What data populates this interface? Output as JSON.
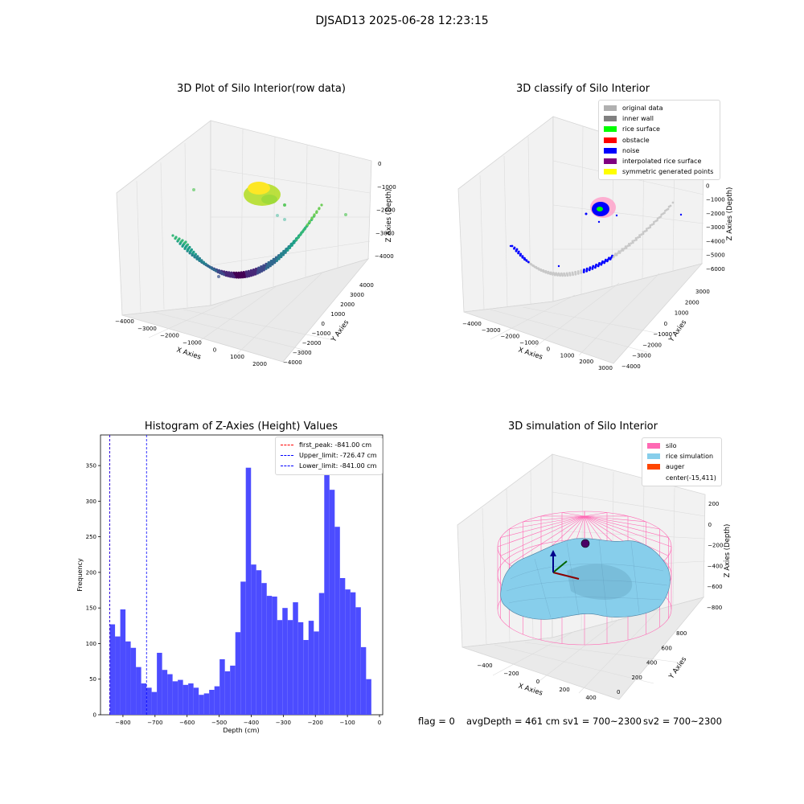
{
  "suptitle": "DJSAD13 2025-06-28 12:23:15",
  "chart_data": [
    {
      "type": "scatter",
      "dimension": "3d",
      "title": "3D Plot of Silo Interior(row data)",
      "xlabel": "X Axies",
      "ylabel": "Y Axies",
      "zlabel": "Z Axies (Depth)",
      "x_ticks": [
        "−4000",
        "−3000",
        "−2000",
        "−1000",
        "0",
        "1000",
        "2000"
      ],
      "y_ticks": [
        "−4000",
        "−3000",
        "−2000",
        "−1000",
        "0",
        "1000",
        "2000",
        "3000",
        "4000"
      ],
      "z_ticks": [
        "0",
        "−1000",
        "−2000",
        "−3000",
        "−4000"
      ],
      "colormap": "viridis",
      "grid": true
    },
    {
      "type": "scatter",
      "dimension": "3d",
      "title": "3D classify of Silo Interior",
      "xlabel": "X Axies",
      "ylabel": "Y Axies",
      "zlabel": "Z Axies (Depth)",
      "x_ticks": [
        "−4000",
        "−3000",
        "−2000",
        "−1000",
        "0",
        "1000",
        "2000",
        "3000"
      ],
      "y_ticks": [
        "−4000",
        "−3000",
        "−2000",
        "−1000",
        "0",
        "1000",
        "2000",
        "3000"
      ],
      "z_ticks": [
        "1000",
        "0",
        "−1000",
        "−2000",
        "−3000",
        "−4000",
        "−5000",
        "−6000"
      ],
      "legend_position": "upper-right",
      "legend": [
        {
          "label": "original data",
          "color": "#b0b0b0"
        },
        {
          "label": "inner wall",
          "color": "#808080"
        },
        {
          "label": "rice surface",
          "color": "#00ff00"
        },
        {
          "label": "obstacle",
          "color": "#ff0000"
        },
        {
          "label": "noise",
          "color": "#0000ff"
        },
        {
          "label": "interpolated rice surface",
          "color": "#800080"
        },
        {
          "label": "symmetric generated points",
          "color": "#ffff00"
        }
      ],
      "grid": true
    },
    {
      "type": "bar",
      "subtype": "histogram",
      "title": "Histogram of Z-Axies (Height) Values",
      "xlabel": "Depth (cm)",
      "ylabel": "Frequency",
      "xlim": [
        -870,
        10
      ],
      "ylim": [
        0,
        393
      ],
      "x_ticks": [
        -800,
        -700,
        -600,
        -500,
        -400,
        -300,
        -200,
        -100,
        0
      ],
      "x_tick_labels": [
        "−800",
        "−700",
        "−600",
        "−500",
        "−400",
        "−300",
        "−200",
        "−100",
        "0"
      ],
      "y_ticks": [
        0,
        50,
        100,
        150,
        200,
        250,
        300,
        350
      ],
      "bar_color": "#4c4cff",
      "bin_start": -841,
      "bin_width": 16.31,
      "values": [
        127,
        110,
        148,
        103,
        94,
        67,
        44,
        38,
        32,
        87,
        63,
        57,
        47,
        49,
        42,
        44,
        38,
        28,
        30,
        35,
        40,
        78,
        61,
        69,
        116,
        187,
        347,
        211,
        203,
        185,
        167,
        166,
        133,
        150,
        133,
        158,
        130,
        105,
        132,
        117,
        171,
        375,
        316,
        264,
        192,
        176,
        172,
        151,
        95,
        50
      ],
      "vlines": [
        {
          "label": "first_peak: -841.00 cm",
          "x": -841.0,
          "color": "#ff0000"
        },
        {
          "label": "Upper_limit: -726.47 cm",
          "x": -726.47,
          "color": "#0000ff"
        },
        {
          "label": "Lower_limit: -841.00 cm",
          "x": -841.0,
          "color": "#0000ff"
        }
      ],
      "legend_position": "upper-right"
    },
    {
      "type": "area",
      "dimension": "3d",
      "subtype": "surface",
      "title": "3D simulation of Silo Interior",
      "xlabel": "X Axies",
      "ylabel": "Y Axies",
      "zlabel": "Z Axies (Depth)",
      "x_ticks": [
        "−400",
        "−200",
        "0",
        "200",
        "400"
      ],
      "y_ticks": [
        "0",
        "200",
        "400",
        "600",
        "800"
      ],
      "z_ticks": [
        "200",
        "0",
        "−200",
        "−400",
        "−600",
        "−800"
      ],
      "legend_position": "upper-right",
      "legend": [
        {
          "label": "silo",
          "color": "#ff69b4"
        },
        {
          "label": "rice simulation",
          "color": "#87ceeb"
        },
        {
          "label": "auger",
          "color": "#ff4500"
        },
        {
          "label": "center(-15,411)",
          "color": ""
        }
      ],
      "grid": true
    }
  ],
  "footer": {
    "flag": "flag = 0",
    "avg_depth": "avgDepth = 461 cm",
    "sv1": "sv1 = 700~2300",
    "sv2": "sv2 = 700~2300"
  }
}
